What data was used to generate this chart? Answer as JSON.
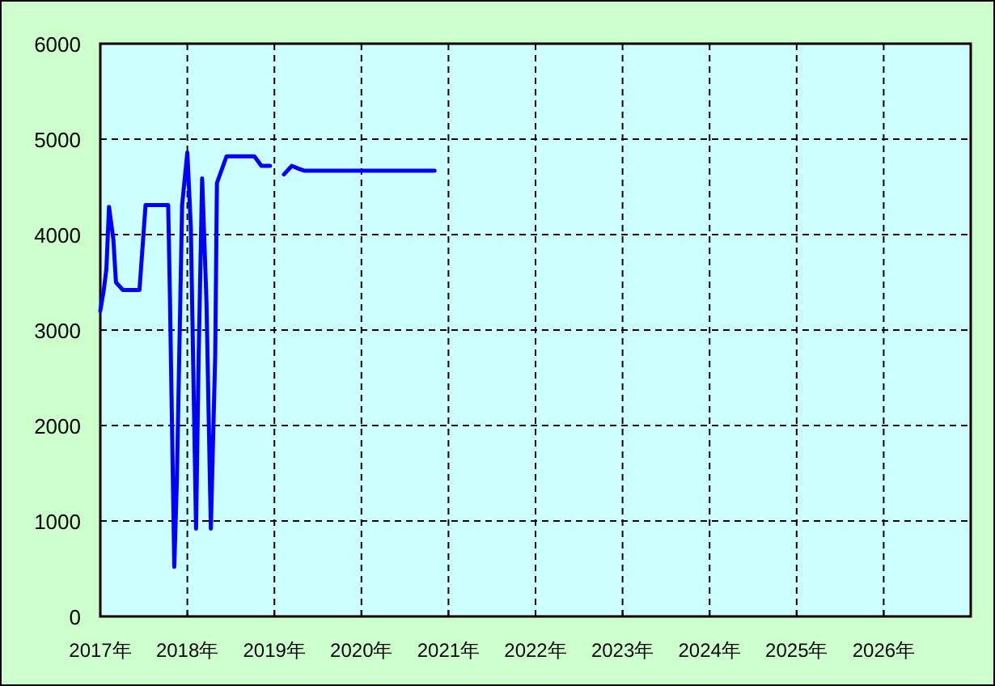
{
  "chart_data": {
    "type": "line",
    "x": [
      2017.0,
      2017.04,
      2017.07,
      2017.1,
      2017.15,
      2017.18,
      2017.26,
      2017.45,
      2017.52,
      2017.78,
      2017.8,
      2017.85,
      2017.88,
      2017.94,
      2018.0,
      2018.04,
      2018.1,
      2018.13,
      2018.17,
      2018.22,
      2018.27,
      2018.32,
      2018.34,
      2018.45,
      2018.77,
      2018.85,
      2018.95,
      2019.03,
      2019.11,
      2019.2,
      2019.28,
      2019.34,
      2020.84
    ],
    "series": [
      {
        "color": "#0000ff",
        "values": [
          3200,
          3420,
          3640,
          4290,
          3950,
          3500,
          3420,
          3420,
          4310,
          4310,
          3350,
          520,
          1430,
          4310,
          4860,
          4080,
          920,
          2730,
          4590,
          3290,
          920,
          2730,
          4540,
          4820,
          4820,
          4720,
          4720,
          null,
          4630,
          4720,
          4690,
          4670,
          4670
        ]
      }
    ],
    "xlim": [
      2017,
      2027
    ],
    "xticks": [
      {
        "value": 2017,
        "label": "2017年"
      },
      {
        "value": 2018,
        "label": "2018年"
      },
      {
        "value": 2019,
        "label": "2019年"
      },
      {
        "value": 2020,
        "label": "2020年"
      },
      {
        "value": 2021,
        "label": "2021年"
      },
      {
        "value": 2022,
        "label": "2022年"
      },
      {
        "value": 2023,
        "label": "2023年"
      },
      {
        "value": 2024,
        "label": "2024年"
      },
      {
        "value": 2025,
        "label": "2025年"
      },
      {
        "value": 2026,
        "label": "2026年"
      }
    ],
    "ylim": [
      0,
      6000
    ],
    "yticks": [
      0,
      1000,
      2000,
      3000,
      4000,
      5000,
      6000
    ],
    "grid": true
  }
}
